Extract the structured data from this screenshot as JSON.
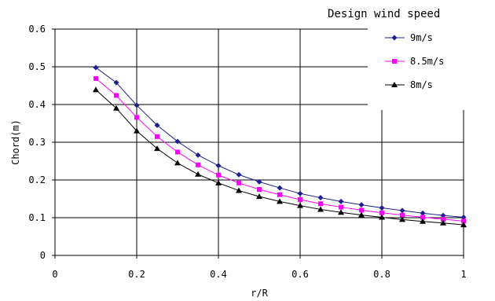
{
  "chart_data": {
    "type": "line",
    "legend_title": "Design wind speed",
    "xlabel": "r/R",
    "ylabel": "Chord(m)",
    "xlim": [
      0,
      1
    ],
    "ylim": [
      0,
      0.6
    ],
    "xticks": [
      "0",
      "0.2",
      "0.4",
      "0.6",
      "0.8",
      "1"
    ],
    "yticks": [
      "0",
      "0.1",
      "0.2",
      "0.3",
      "0.4",
      "0.5",
      "0.6"
    ],
    "grid": true,
    "legend_position": "top-right",
    "x": [
      0.1,
      0.15,
      0.2,
      0.25,
      0.3,
      0.35,
      0.4,
      0.45,
      0.5,
      0.55,
      0.6,
      0.65,
      0.7,
      0.75,
      0.8,
      0.85,
      0.9,
      0.95,
      1.0
    ],
    "series": [
      {
        "name": "9m/s",
        "color": "#1f1f8f",
        "marker": "diamond",
        "values": [
          0.498,
          0.458,
          0.398,
          0.345,
          0.302,
          0.266,
          0.238,
          0.214,
          0.195,
          0.179,
          0.164,
          0.153,
          0.143,
          0.134,
          0.126,
          0.119,
          0.112,
          0.106,
          0.101
        ]
      },
      {
        "name": "8.5m/s",
        "color": "#ff00ff",
        "marker": "square",
        "values": [
          0.469,
          0.424,
          0.366,
          0.315,
          0.274,
          0.24,
          0.213,
          0.192,
          0.175,
          0.161,
          0.148,
          0.137,
          0.128,
          0.12,
          0.113,
          0.107,
          0.101,
          0.096,
          0.091
        ]
      },
      {
        "name": "8m/s",
        "color": "#000000",
        "marker": "triangle",
        "values": [
          0.439,
          0.39,
          0.33,
          0.283,
          0.245,
          0.215,
          0.192,
          0.172,
          0.156,
          0.143,
          0.132,
          0.122,
          0.114,
          0.107,
          0.101,
          0.095,
          0.09,
          0.086,
          0.081
        ]
      }
    ]
  }
}
